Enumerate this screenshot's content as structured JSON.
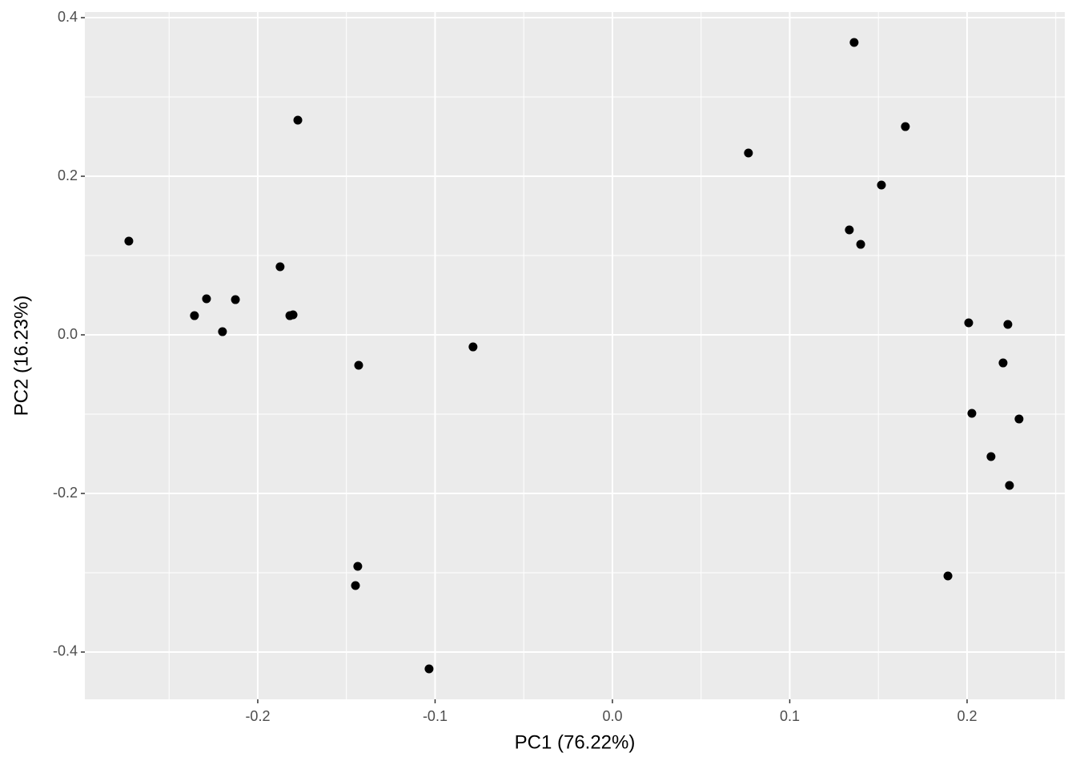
{
  "chart_data": {
    "type": "scatter",
    "x_label": "PC1 (76.22%)",
    "y_label": "PC2 (16.23%)",
    "x": [
      -0.2727,
      -0.1774,
      -0.1874,
      -0.2289,
      -0.2126,
      -0.2357,
      -0.2199,
      -0.1819,
      -0.1801,
      -0.1431,
      -0.0786,
      -0.1436,
      -0.1449,
      -0.1034,
      0.0767,
      0.1363,
      0.1652,
      0.1517,
      0.1336,
      0.14,
      0.2009,
      0.223,
      0.2203,
      0.2027,
      0.2293,
      0.2135,
      0.2239,
      0.1892
    ],
    "values": [
      0.1182,
      0.2707,
      0.0859,
      0.0455,
      0.0444,
      0.0242,
      0.004,
      0.0242,
      0.0253,
      -0.0384,
      -0.0152,
      -0.2919,
      -0.3162,
      -0.4212,
      0.2293,
      0.3687,
      0.2626,
      0.1889,
      0.1323,
      0.1141,
      0.0152,
      0.0131,
      -0.0354,
      -0.099,
      -0.1061,
      -0.1535,
      -0.1899,
      -0.304
    ],
    "color": "#000000",
    "xlim": [
      -0.2975,
      0.2551
    ],
    "ylim": [
      -0.4596,
      0.4071
    ],
    "xticks": [
      -0.2,
      -0.1,
      {
        "value": 0,
        "label": "0.0"
      },
      0.1,
      0.2
    ],
    "yticks": [
      -0.4,
      -0.2,
      {
        "value": 0,
        "label": "0.0"
      },
      0.2,
      0.4
    ],
    "grid": true
  }
}
